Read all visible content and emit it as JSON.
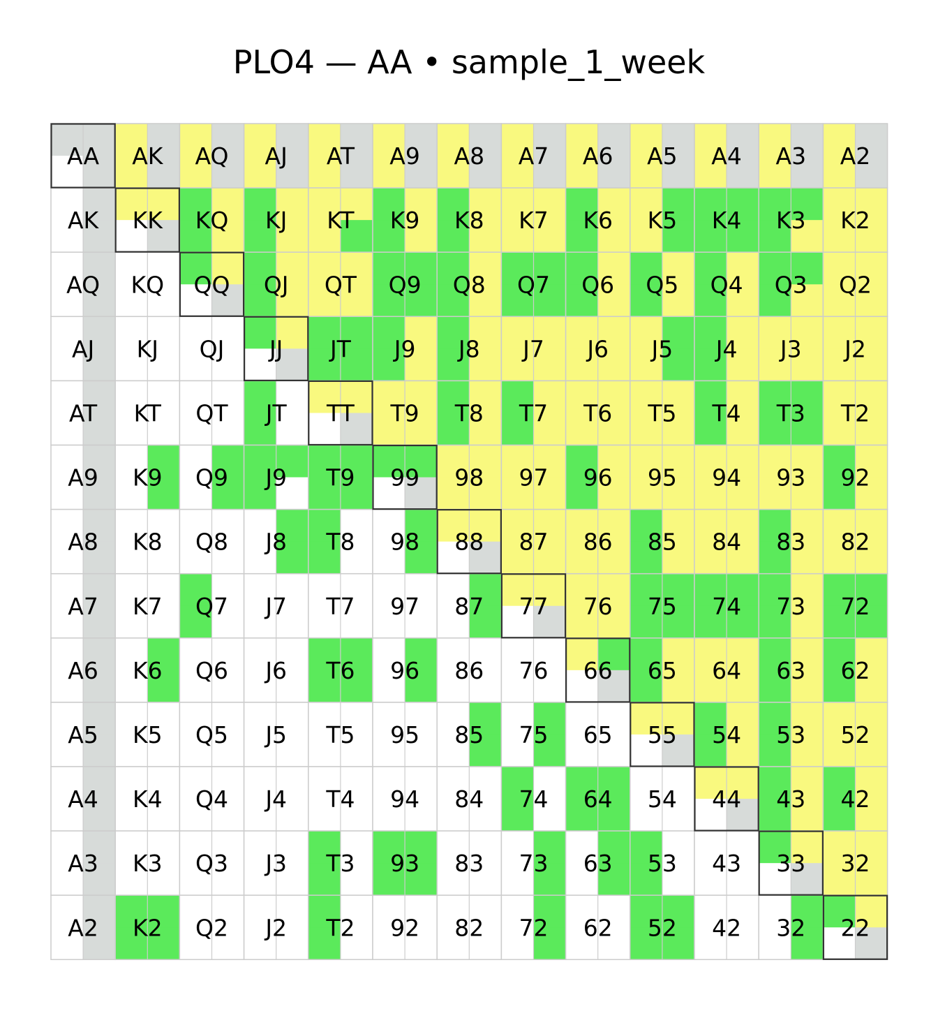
{
  "chart_data": {
    "type": "heatmap",
    "title": "PLO4 — AA  •  sample_1_week",
    "ranks": [
      "A",
      "K",
      "Q",
      "J",
      "T",
      "9",
      "8",
      "7",
      "6",
      "5",
      "4",
      "3",
      "2"
    ],
    "colors": {
      "G": "#5bea5b",
      "Y": "#f9f97f",
      "S": "#d7dbd9",
      "W": "#ffffff",
      "grid": "#cccccc",
      "pair_border": "#333333"
    },
    "cells": [
      {
        "row": 0,
        "label": "AA",
        "q": "SSWS"
      },
      {
        "row": 0,
        "label": "AK",
        "q": "YSYS"
      },
      {
        "row": 0,
        "label": "AQ",
        "q": "YSYS"
      },
      {
        "row": 0,
        "label": "AJ",
        "q": "YSYS"
      },
      {
        "row": 0,
        "label": "AT",
        "q": "YSYS"
      },
      {
        "row": 0,
        "label": "A9",
        "q": "YSYS"
      },
      {
        "row": 0,
        "label": "A8",
        "q": "YSYS"
      },
      {
        "row": 0,
        "label": "A7",
        "q": "YSYS"
      },
      {
        "row": 0,
        "label": "A6",
        "q": "YSYS"
      },
      {
        "row": 0,
        "label": "A5",
        "q": "YSYS"
      },
      {
        "row": 0,
        "label": "A4",
        "q": "YSYS"
      },
      {
        "row": 0,
        "label": "A3",
        "q": "YSYS"
      },
      {
        "row": 0,
        "label": "A2",
        "q": "YSYS"
      },
      {
        "row": 1,
        "label": "AK",
        "q": "WSWS"
      },
      {
        "row": 1,
        "label": "KK",
        "q": "YYWS"
      },
      {
        "row": 1,
        "label": "KQ",
        "q": "GYGY"
      },
      {
        "row": 1,
        "label": "KJ",
        "q": "GYGY"
      },
      {
        "row": 1,
        "label": "KT",
        "q": "YYYG"
      },
      {
        "row": 1,
        "label": "K9",
        "q": "GYGY"
      },
      {
        "row": 1,
        "label": "K8",
        "q": "GYGY"
      },
      {
        "row": 1,
        "label": "K7",
        "q": "YYYY"
      },
      {
        "row": 1,
        "label": "K6",
        "q": "GYGY"
      },
      {
        "row": 1,
        "label": "K5",
        "q": "YGYG"
      },
      {
        "row": 1,
        "label": "K4",
        "q": "GGGG"
      },
      {
        "row": 1,
        "label": "K3",
        "q": "GGGY"
      },
      {
        "row": 1,
        "label": "K2",
        "q": "YYYY"
      },
      {
        "row": 2,
        "label": "AQ",
        "q": "WSWS"
      },
      {
        "row": 2,
        "label": "KQ",
        "q": "WWWW"
      },
      {
        "row": 2,
        "label": "QQ",
        "q": "GYWS"
      },
      {
        "row": 2,
        "label": "QJ",
        "q": "GYGY"
      },
      {
        "row": 2,
        "label": "QT",
        "q": "YYYY"
      },
      {
        "row": 2,
        "label": "Q9",
        "q": "GGGG"
      },
      {
        "row": 2,
        "label": "Q8",
        "q": "GYGY"
      },
      {
        "row": 2,
        "label": "Q7",
        "q": "GGGG"
      },
      {
        "row": 2,
        "label": "Q6",
        "q": "GYGY"
      },
      {
        "row": 2,
        "label": "Q5",
        "q": "GYGY"
      },
      {
        "row": 2,
        "label": "Q4",
        "q": "GYGY"
      },
      {
        "row": 2,
        "label": "Q3",
        "q": "GGGY"
      },
      {
        "row": 2,
        "label": "Q2",
        "q": "YYYY"
      },
      {
        "row": 3,
        "label": "AJ",
        "q": "WSWS"
      },
      {
        "row": 3,
        "label": "KJ",
        "q": "WWWW"
      },
      {
        "row": 3,
        "label": "QJ",
        "q": "WWWW"
      },
      {
        "row": 3,
        "label": "JJ",
        "q": "GYWS"
      },
      {
        "row": 3,
        "label": "JT",
        "q": "GGGG"
      },
      {
        "row": 3,
        "label": "J9",
        "q": "GYGY"
      },
      {
        "row": 3,
        "label": "J8",
        "q": "GYGY"
      },
      {
        "row": 3,
        "label": "J7",
        "q": "YYYY"
      },
      {
        "row": 3,
        "label": "J6",
        "q": "YYYY"
      },
      {
        "row": 3,
        "label": "J5",
        "q": "YGYG"
      },
      {
        "row": 3,
        "label": "J4",
        "q": "GYGY"
      },
      {
        "row": 3,
        "label": "J3",
        "q": "YYYY"
      },
      {
        "row": 3,
        "label": "J2",
        "q": "YYYY"
      },
      {
        "row": 4,
        "label": "AT",
        "q": "WSWS"
      },
      {
        "row": 4,
        "label": "KT",
        "q": "WWWW"
      },
      {
        "row": 4,
        "label": "QT",
        "q": "WWWW"
      },
      {
        "row": 4,
        "label": "JT",
        "q": "GWGW"
      },
      {
        "row": 4,
        "label": "TT",
        "q": "YYWS"
      },
      {
        "row": 4,
        "label": "T9",
        "q": "YYYY"
      },
      {
        "row": 4,
        "label": "T8",
        "q": "GYGY"
      },
      {
        "row": 4,
        "label": "T7",
        "q": "GYGY"
      },
      {
        "row": 4,
        "label": "T6",
        "q": "YYYY"
      },
      {
        "row": 4,
        "label": "T5",
        "q": "YYYY"
      },
      {
        "row": 4,
        "label": "T4",
        "q": "GYGY"
      },
      {
        "row": 4,
        "label": "T3",
        "q": "GGGG"
      },
      {
        "row": 4,
        "label": "T2",
        "q": "YYYY"
      },
      {
        "row": 5,
        "label": "A9",
        "q": "WSWS"
      },
      {
        "row": 5,
        "label": "K9",
        "q": "WGWG"
      },
      {
        "row": 5,
        "label": "Q9",
        "q": "WGWG"
      },
      {
        "row": 5,
        "label": "J9",
        "q": "GGGW"
      },
      {
        "row": 5,
        "label": "T9",
        "q": "GGGG"
      },
      {
        "row": 5,
        "label": "99",
        "q": "GGWS"
      },
      {
        "row": 5,
        "label": "98",
        "q": "YYYY"
      },
      {
        "row": 5,
        "label": "97",
        "q": "YYYY"
      },
      {
        "row": 5,
        "label": "96",
        "q": "GYGY"
      },
      {
        "row": 5,
        "label": "95",
        "q": "YYYY"
      },
      {
        "row": 5,
        "label": "94",
        "q": "YYYY"
      },
      {
        "row": 5,
        "label": "93",
        "q": "YYYY"
      },
      {
        "row": 5,
        "label": "92",
        "q": "GYGY"
      },
      {
        "row": 6,
        "label": "A8",
        "q": "WSWS"
      },
      {
        "row": 6,
        "label": "K8",
        "q": "WWWW"
      },
      {
        "row": 6,
        "label": "Q8",
        "q": "WWWW"
      },
      {
        "row": 6,
        "label": "J8",
        "q": "WGWG"
      },
      {
        "row": 6,
        "label": "T8",
        "q": "GWGW"
      },
      {
        "row": 6,
        "label": "98",
        "q": "WGWG"
      },
      {
        "row": 6,
        "label": "88",
        "q": "YYWS"
      },
      {
        "row": 6,
        "label": "87",
        "q": "YYYY"
      },
      {
        "row": 6,
        "label": "86",
        "q": "YYYY"
      },
      {
        "row": 6,
        "label": "85",
        "q": "GYGY"
      },
      {
        "row": 6,
        "label": "84",
        "q": "YYYY"
      },
      {
        "row": 6,
        "label": "83",
        "q": "GYGY"
      },
      {
        "row": 6,
        "label": "82",
        "q": "YYYY"
      },
      {
        "row": 7,
        "label": "A7",
        "q": "WSWS"
      },
      {
        "row": 7,
        "label": "K7",
        "q": "WWWW"
      },
      {
        "row": 7,
        "label": "Q7",
        "q": "GWGW"
      },
      {
        "row": 7,
        "label": "J7",
        "q": "WWWW"
      },
      {
        "row": 7,
        "label": "T7",
        "q": "WWWW"
      },
      {
        "row": 7,
        "label": "97",
        "q": "WWWW"
      },
      {
        "row": 7,
        "label": "87",
        "q": "WGWG"
      },
      {
        "row": 7,
        "label": "77",
        "q": "YYWS"
      },
      {
        "row": 7,
        "label": "76",
        "q": "YYYY"
      },
      {
        "row": 7,
        "label": "75",
        "q": "GGGG"
      },
      {
        "row": 7,
        "label": "74",
        "q": "GGGG"
      },
      {
        "row": 7,
        "label": "73",
        "q": "GYGY"
      },
      {
        "row": 7,
        "label": "72",
        "q": "GGGG"
      },
      {
        "row": 8,
        "label": "A6",
        "q": "WSWS"
      },
      {
        "row": 8,
        "label": "K6",
        "q": "WGWG"
      },
      {
        "row": 8,
        "label": "Q6",
        "q": "WWWW"
      },
      {
        "row": 8,
        "label": "J6",
        "q": "WWWW"
      },
      {
        "row": 8,
        "label": "T6",
        "q": "GGGG"
      },
      {
        "row": 8,
        "label": "96",
        "q": "WGWG"
      },
      {
        "row": 8,
        "label": "86",
        "q": "WWWW"
      },
      {
        "row": 8,
        "label": "76",
        "q": "WWWW"
      },
      {
        "row": 8,
        "label": "66",
        "q": "YGWS"
      },
      {
        "row": 8,
        "label": "65",
        "q": "GYGY"
      },
      {
        "row": 8,
        "label": "64",
        "q": "YYYY"
      },
      {
        "row": 8,
        "label": "63",
        "q": "GYGY"
      },
      {
        "row": 8,
        "label": "62",
        "q": "GYGY"
      },
      {
        "row": 9,
        "label": "A5",
        "q": "WSWS"
      },
      {
        "row": 9,
        "label": "K5",
        "q": "WWWW"
      },
      {
        "row": 9,
        "label": "Q5",
        "q": "WWWW"
      },
      {
        "row": 9,
        "label": "J5",
        "q": "WWWW"
      },
      {
        "row": 9,
        "label": "T5",
        "q": "WWWW"
      },
      {
        "row": 9,
        "label": "95",
        "q": "WWWW"
      },
      {
        "row": 9,
        "label": "85",
        "q": "WGWG"
      },
      {
        "row": 9,
        "label": "75",
        "q": "WGWG"
      },
      {
        "row": 9,
        "label": "65",
        "q": "WWWW"
      },
      {
        "row": 9,
        "label": "55",
        "q": "YYWS"
      },
      {
        "row": 9,
        "label": "54",
        "q": "GYGY"
      },
      {
        "row": 9,
        "label": "53",
        "q": "GYGY"
      },
      {
        "row": 9,
        "label": "52",
        "q": "YYYY"
      },
      {
        "row": 10,
        "label": "A4",
        "q": "WSWS"
      },
      {
        "row": 10,
        "label": "K4",
        "q": "WWWW"
      },
      {
        "row": 10,
        "label": "Q4",
        "q": "WWWW"
      },
      {
        "row": 10,
        "label": "J4",
        "q": "WWWW"
      },
      {
        "row": 10,
        "label": "T4",
        "q": "WWWW"
      },
      {
        "row": 10,
        "label": "94",
        "q": "WWWW"
      },
      {
        "row": 10,
        "label": "84",
        "q": "WWWW"
      },
      {
        "row": 10,
        "label": "74",
        "q": "GWGW"
      },
      {
        "row": 10,
        "label": "64",
        "q": "GGGG"
      },
      {
        "row": 10,
        "label": "54",
        "q": "WWWW"
      },
      {
        "row": 10,
        "label": "44",
        "q": "YYWS"
      },
      {
        "row": 10,
        "label": "43",
        "q": "GYGY"
      },
      {
        "row": 10,
        "label": "42",
        "q": "GYGY"
      },
      {
        "row": 11,
        "label": "A3",
        "q": "WSWS"
      },
      {
        "row": 11,
        "label": "K3",
        "q": "WWWW"
      },
      {
        "row": 11,
        "label": "Q3",
        "q": "WWWW"
      },
      {
        "row": 11,
        "label": "J3",
        "q": "WWWW"
      },
      {
        "row": 11,
        "label": "T3",
        "q": "GWGW"
      },
      {
        "row": 11,
        "label": "93",
        "q": "GGGG"
      },
      {
        "row": 11,
        "label": "83",
        "q": "WWWW"
      },
      {
        "row": 11,
        "label": "73",
        "q": "WGWG"
      },
      {
        "row": 11,
        "label": "63",
        "q": "WGWG"
      },
      {
        "row": 11,
        "label": "53",
        "q": "GWGW"
      },
      {
        "row": 11,
        "label": "43",
        "q": "WWWW"
      },
      {
        "row": 11,
        "label": "33",
        "q": "GYWS"
      },
      {
        "row": 11,
        "label": "32",
        "q": "YYYY"
      },
      {
        "row": 12,
        "label": "A2",
        "q": "WSWS"
      },
      {
        "row": 12,
        "label": "K2",
        "q": "GGGG"
      },
      {
        "row": 12,
        "label": "Q2",
        "q": "WWWW"
      },
      {
        "row": 12,
        "label": "J2",
        "q": "WWWW"
      },
      {
        "row": 12,
        "label": "T2",
        "q": "GWGW"
      },
      {
        "row": 12,
        "label": "92",
        "q": "WWWW"
      },
      {
        "row": 12,
        "label": "82",
        "q": "WWWW"
      },
      {
        "row": 12,
        "label": "72",
        "q": "WGWG"
      },
      {
        "row": 12,
        "label": "62",
        "q": "WWWW"
      },
      {
        "row": 12,
        "label": "52",
        "q": "GGGG"
      },
      {
        "row": 12,
        "label": "42",
        "q": "WWWW"
      },
      {
        "row": 12,
        "label": "32",
        "q": "WGWG"
      },
      {
        "row": 12,
        "label": "22",
        "q": "GYWS"
      }
    ]
  }
}
